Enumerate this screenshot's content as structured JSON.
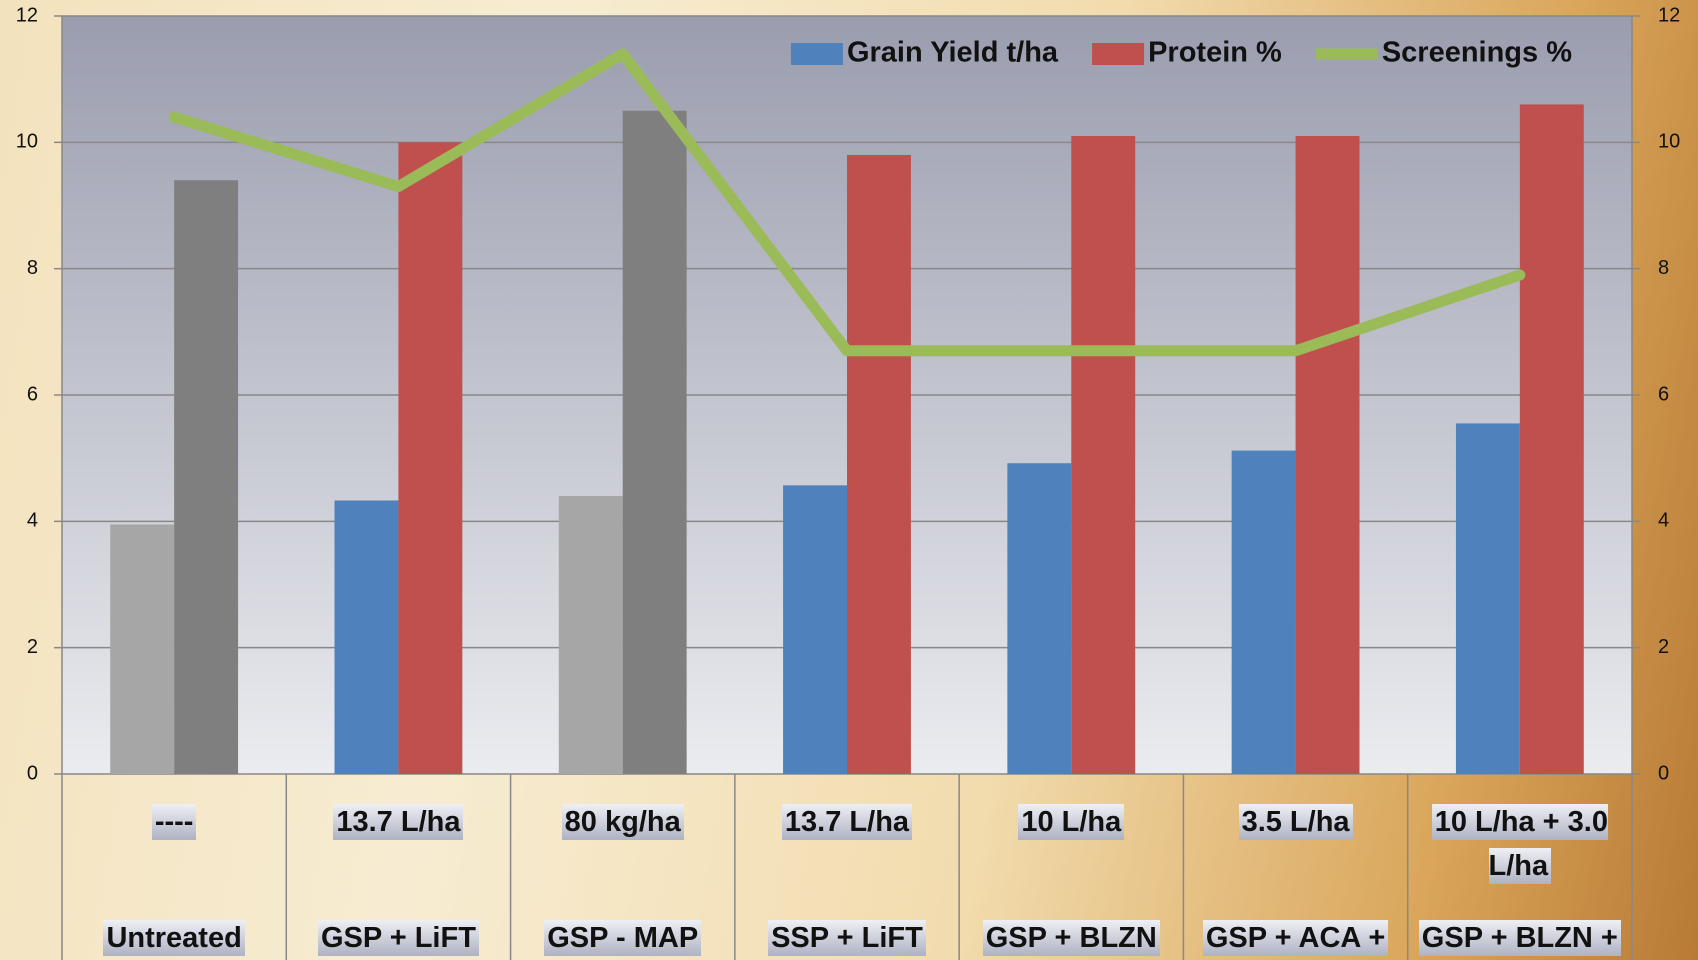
{
  "chart_data": {
    "type": "bar",
    "categories": [
      "Untreated",
      "GSP + LiFT",
      "GSP - MAP",
      "SSP + LiFT",
      "GSP + BLZN",
      "GSP + ACA +",
      "GSP + BLZN +"
    ],
    "dose_labels": [
      "----",
      "13.7 L/ha",
      "80 kg/ha",
      "13.7 L/ha",
      "10 L/ha",
      "3.5 L/ha",
      "10 L/ha + 3.0 L/ha"
    ],
    "series": [
      {
        "name": "Grain Yield t/ha",
        "type": "bar",
        "color": "#4f81bd",
        "point_colors": [
          "#a6a6a6",
          "#4f81bd",
          "#a6a6a6",
          "#4f81bd",
          "#4f81bd",
          "#4f81bd",
          "#4f81bd"
        ],
        "values": [
          3.95,
          4.33,
          4.4,
          4.57,
          4.92,
          5.12,
          5.55
        ]
      },
      {
        "name": "Protein %",
        "type": "bar",
        "color": "#c0504d",
        "point_colors": [
          "#7f7f7f",
          "#c0504d",
          "#7f7f7f",
          "#c0504d",
          "#c0504d",
          "#c0504d",
          "#c0504d"
        ],
        "values": [
          9.4,
          10.0,
          10.5,
          9.8,
          10.1,
          10.1,
          10.6
        ]
      },
      {
        "name": "Screenings %",
        "type": "line",
        "color": "#9bbb59",
        "axis": "y2",
        "values": [
          10.4,
          9.3,
          11.4,
          6.7,
          6.7,
          6.7,
          7.9
        ]
      }
    ],
    "ylim": [
      0,
      12
    ],
    "yticks": [
      0,
      2,
      4,
      6,
      8,
      10,
      12
    ],
    "y2lim": [
      0,
      12
    ],
    "y2ticks": [
      0,
      2,
      4,
      6,
      8,
      10,
      12
    ],
    "grid": true,
    "legend": "top-right"
  }
}
